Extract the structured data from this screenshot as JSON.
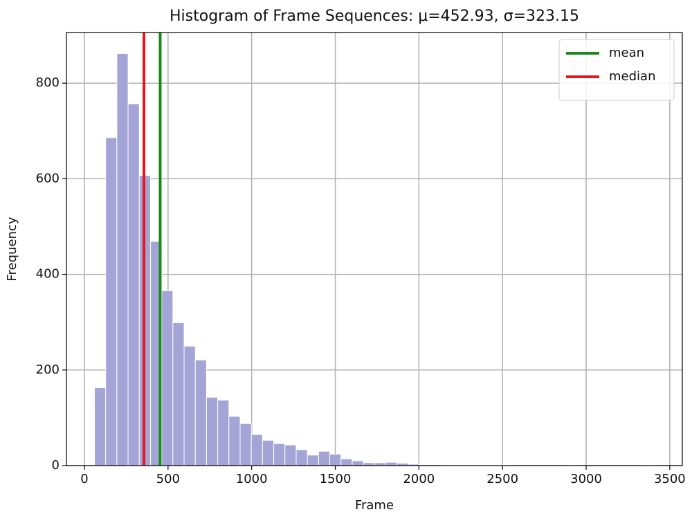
{
  "chart_data": {
    "type": "histogram",
    "title": "Histogram of Frame Sequences: μ=452.93, σ=323.15",
    "xlabel": "Frame",
    "ylabel": "Frequency",
    "bins": [
      60,
      127,
      194,
      261,
      328,
      395,
      462,
      529,
      596,
      663,
      730,
      797,
      864,
      931,
      998,
      1065,
      1132,
      1199,
      1266,
      1333,
      1400,
      1467,
      1534,
      1601,
      1668,
      1735,
      1802,
      1869,
      1936,
      2003,
      2070,
      2137,
      2204,
      2271,
      2338,
      2405,
      2472,
      2539,
      2606,
      2673,
      2740,
      2807,
      2874,
      2941,
      3008,
      3075,
      3142,
      3209,
      3276,
      3343,
      3410
    ],
    "counts": [
      163,
      686,
      862,
      757,
      607,
      469,
      366,
      299,
      250,
      221,
      143,
      137,
      103,
      88,
      65,
      53,
      46,
      43,
      33,
      22,
      30,
      24,
      14,
      10,
      6,
      6,
      7,
      5,
      3,
      2,
      2,
      1,
      1,
      1,
      1,
      1,
      1,
      0,
      0,
      0,
      0,
      0,
      1,
      0,
      0,
      0,
      0,
      0,
      0,
      1
    ],
    "color": "#a4a5d6",
    "xlim": [
      -107.6,
      3575
    ],
    "ylim": [
      0,
      906
    ],
    "xticks": [
      0,
      500,
      1000,
      1500,
      2000,
      2500,
      3000,
      3500
    ],
    "yticks": [
      0,
      200,
      400,
      600,
      800
    ],
    "grid": true,
    "lines": [
      {
        "name": "mean",
        "value": 452.93,
        "color": "#1a8a1a"
      },
      {
        "name": "median",
        "value": 356,
        "color": "#e8151b"
      }
    ],
    "legend": "upper right"
  }
}
